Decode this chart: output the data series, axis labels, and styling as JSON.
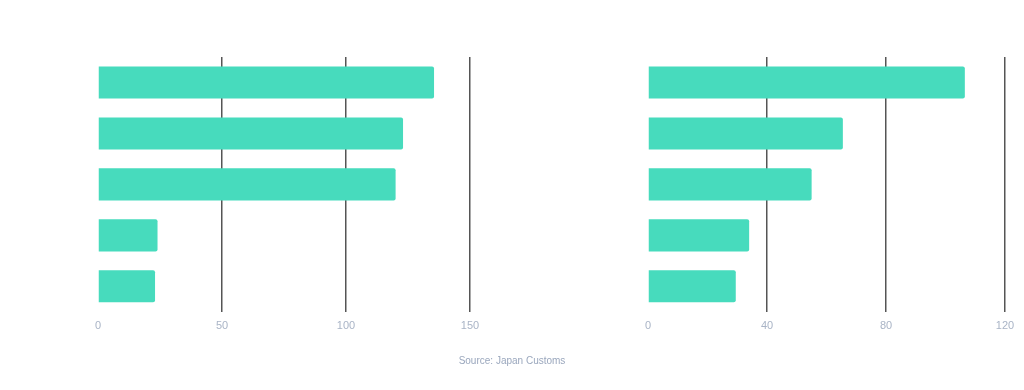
{
  "chart_data": [
    {
      "type": "bar",
      "orientation": "horizontal",
      "categories": [
        null,
        null,
        null,
        null,
        null
      ],
      "values": [
        135.5,
        123,
        120,
        24,
        23
      ],
      "color": "#47dbbd",
      "xlim": [
        0,
        150
      ],
      "xticks": [
        0,
        50,
        100,
        150
      ],
      "grid": "x",
      "legend": false,
      "tick_labels": "x"
    },
    {
      "type": "bar",
      "orientation": "horizontal",
      "categories": [
        null,
        null,
        null,
        null,
        null
      ],
      "values": [
        106.5,
        65.5,
        55,
        34,
        29.5
      ],
      "color": "#47dbbd",
      "xlim": [
        0,
        120
      ],
      "xticks": [
        0,
        40,
        80,
        120
      ],
      "grid": "x",
      "legend": false,
      "tick_labels": "x",
      "annotations": [
        "Source: Japan Customs"
      ]
    }
  ]
}
